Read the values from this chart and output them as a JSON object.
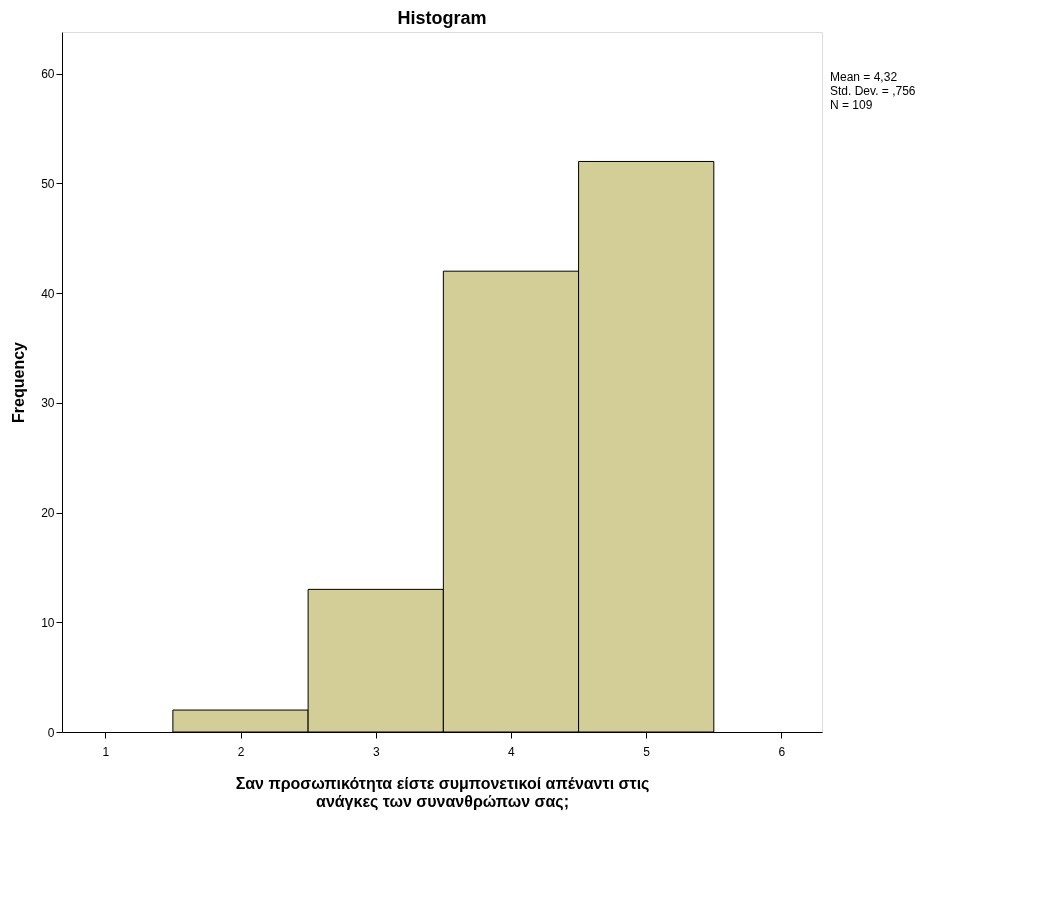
{
  "chart_data": {
    "type": "histogram",
    "title": "Histogram",
    "xlabel": "Σαν προσωπικότητα είστε συμπονετικοί απέναντι στις ανάγκες των συνανθρώπων σας;",
    "ylabel": "Frequency",
    "bins": [
      1.5,
      2.5,
      3.5,
      4.5,
      5.5
    ],
    "values": [
      2,
      13,
      42,
      52
    ],
    "color": "#d3ce98",
    "xlim": [
      0.68,
      6.3
    ],
    "xticks": [
      1,
      2,
      3,
      4,
      5,
      6
    ],
    "ylim": [
      0,
      63.8
    ],
    "yticks": [
      0,
      10,
      20,
      30,
      40,
      50,
      60
    ],
    "grid": false,
    "annotations": [
      "Mean = 4,32",
      "Std. Dev. = ,756",
      "N = 109"
    ]
  }
}
